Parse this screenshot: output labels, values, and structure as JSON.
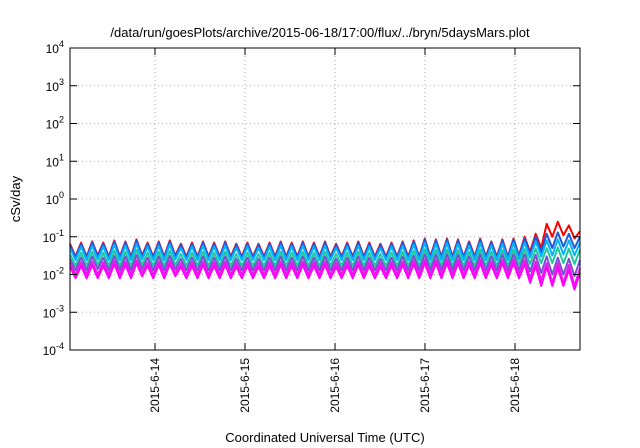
{
  "chart_data": {
    "type": "line",
    "title": "/data/run/goesPlots/archive/2015-06-18/17:00/flux/../bryn/5daysMars.plot",
    "xlabel": "Coordinated Universal Time (UTC)",
    "ylabel": "cSv/day",
    "yscale": "log",
    "ylim": [
      0.0001,
      10000
    ],
    "xlim": [
      "2015-06-13 04:00",
      "2015-06-18 17:00"
    ],
    "y_ticks": [
      {
        "value": 0.0001,
        "base": "10",
        "exp": "-4"
      },
      {
        "value": 0.001,
        "base": "10",
        "exp": "-3"
      },
      {
        "value": 0.01,
        "base": "10",
        "exp": "-2"
      },
      {
        "value": 0.1,
        "base": "10",
        "exp": "-1"
      },
      {
        "value": 1,
        "base": "10",
        "exp": "0"
      },
      {
        "value": 10,
        "base": "10",
        "exp": "1"
      },
      {
        "value": 100,
        "base": "10",
        "exp": "2"
      },
      {
        "value": 1000,
        "base": "10",
        "exp": "3"
      },
      {
        "value": 10000,
        "base": "10",
        "exp": "4"
      }
    ],
    "x_ticks": [
      "2015-6-14",
      "2015-6-15",
      "2015-6-16",
      "2015-6-17",
      "2015-6-18"
    ],
    "grid": true,
    "legend": "none",
    "series": [
      {
        "color": "#ff0000",
        "values": [
          0.065,
          0.03,
          0.07,
          0.03,
          0.075,
          0.032,
          0.07,
          0.03,
          0.08,
          0.03,
          0.075,
          0.03,
          0.085,
          0.032,
          0.07,
          0.03,
          0.075,
          0.03,
          0.08,
          0.032,
          0.065,
          0.03,
          0.07,
          0.03,
          0.075,
          0.03,
          0.07,
          0.03,
          0.075,
          0.03,
          0.065,
          0.03,
          0.07,
          0.03,
          0.065,
          0.03,
          0.07,
          0.03,
          0.075,
          0.03,
          0.07,
          0.03,
          0.075,
          0.03,
          0.07,
          0.03,
          0.075,
          0.03,
          0.065,
          0.03,
          0.07,
          0.03,
          0.075,
          0.03,
          0.07,
          0.03,
          0.065,
          0.03,
          0.07,
          0.03,
          0.075,
          0.03,
          0.08,
          0.03,
          0.09,
          0.03,
          0.085,
          0.03,
          0.09,
          0.03,
          0.085,
          0.03,
          0.075,
          0.03,
          0.09,
          0.03,
          0.075,
          0.03,
          0.085,
          0.03,
          0.09,
          0.032,
          0.1,
          0.04,
          0.12,
          0.05,
          0.22,
          0.1,
          0.25,
          0.11,
          0.2,
          0.09,
          0.14
        ]
      },
      {
        "color": "#1e5adc",
        "values": [
          0.06,
          0.028,
          0.065,
          0.028,
          0.07,
          0.03,
          0.065,
          0.028,
          0.075,
          0.028,
          0.07,
          0.028,
          0.08,
          0.03,
          0.065,
          0.028,
          0.07,
          0.028,
          0.075,
          0.03,
          0.06,
          0.028,
          0.065,
          0.028,
          0.07,
          0.028,
          0.065,
          0.028,
          0.07,
          0.028,
          0.06,
          0.028,
          0.065,
          0.028,
          0.06,
          0.028,
          0.065,
          0.028,
          0.07,
          0.028,
          0.065,
          0.028,
          0.07,
          0.028,
          0.065,
          0.028,
          0.07,
          0.028,
          0.06,
          0.028,
          0.065,
          0.028,
          0.07,
          0.028,
          0.065,
          0.028,
          0.06,
          0.028,
          0.065,
          0.028,
          0.07,
          0.028,
          0.075,
          0.028,
          0.085,
          0.028,
          0.08,
          0.028,
          0.085,
          0.028,
          0.08,
          0.028,
          0.07,
          0.028,
          0.085,
          0.028,
          0.07,
          0.028,
          0.08,
          0.028,
          0.085,
          0.03,
          0.09,
          0.035,
          0.1,
          0.04,
          0.12,
          0.05,
          0.13,
          0.055,
          0.12,
          0.05,
          0.1
        ]
      },
      {
        "color": "#00b4ff",
        "values": [
          0.05,
          0.024,
          0.055,
          0.024,
          0.058,
          0.025,
          0.055,
          0.024,
          0.062,
          0.024,
          0.058,
          0.024,
          0.065,
          0.025,
          0.055,
          0.024,
          0.058,
          0.024,
          0.062,
          0.025,
          0.05,
          0.024,
          0.055,
          0.024,
          0.058,
          0.024,
          0.055,
          0.024,
          0.058,
          0.024,
          0.05,
          0.024,
          0.055,
          0.024,
          0.05,
          0.024,
          0.055,
          0.024,
          0.058,
          0.024,
          0.055,
          0.024,
          0.058,
          0.024,
          0.055,
          0.024,
          0.058,
          0.024,
          0.05,
          0.024,
          0.055,
          0.024,
          0.058,
          0.024,
          0.055,
          0.024,
          0.05,
          0.024,
          0.055,
          0.024,
          0.058,
          0.024,
          0.062,
          0.024,
          0.068,
          0.024,
          0.065,
          0.024,
          0.068,
          0.024,
          0.065,
          0.024,
          0.058,
          0.024,
          0.068,
          0.024,
          0.058,
          0.024,
          0.065,
          0.024,
          0.068,
          0.025,
          0.07,
          0.028,
          0.075,
          0.03,
          0.08,
          0.032,
          0.085,
          0.034,
          0.08,
          0.032,
          0.07
        ]
      },
      {
        "color": "#20c8a0",
        "values": [
          0.035,
          0.017,
          0.038,
          0.017,
          0.04,
          0.018,
          0.038,
          0.017,
          0.042,
          0.017,
          0.04,
          0.017,
          0.045,
          0.018,
          0.038,
          0.017,
          0.04,
          0.017,
          0.042,
          0.018,
          0.035,
          0.017,
          0.038,
          0.017,
          0.04,
          0.017,
          0.038,
          0.017,
          0.04,
          0.017,
          0.035,
          0.017,
          0.038,
          0.017,
          0.035,
          0.017,
          0.038,
          0.017,
          0.04,
          0.017,
          0.038,
          0.017,
          0.04,
          0.017,
          0.038,
          0.017,
          0.04,
          0.017,
          0.035,
          0.017,
          0.038,
          0.017,
          0.04,
          0.017,
          0.038,
          0.017,
          0.035,
          0.017,
          0.038,
          0.017,
          0.04,
          0.017,
          0.042,
          0.017,
          0.046,
          0.017,
          0.044,
          0.017,
          0.046,
          0.017,
          0.044,
          0.017,
          0.04,
          0.017,
          0.046,
          0.017,
          0.04,
          0.017,
          0.044,
          0.017,
          0.046,
          0.018,
          0.047,
          0.019,
          0.048,
          0.02,
          0.05,
          0.02,
          0.052,
          0.02,
          0.048,
          0.019,
          0.045
        ]
      },
      {
        "color": "#7a4fd6",
        "values": [
          0.026,
          0.013,
          0.028,
          0.013,
          0.03,
          0.014,
          0.028,
          0.013,
          0.031,
          0.013,
          0.03,
          0.013,
          0.033,
          0.014,
          0.028,
          0.013,
          0.03,
          0.013,
          0.031,
          0.014,
          0.026,
          0.013,
          0.028,
          0.013,
          0.03,
          0.013,
          0.028,
          0.013,
          0.03,
          0.013,
          0.026,
          0.013,
          0.028,
          0.013,
          0.026,
          0.013,
          0.028,
          0.013,
          0.03,
          0.013,
          0.028,
          0.013,
          0.03,
          0.013,
          0.028,
          0.013,
          0.03,
          0.013,
          0.026,
          0.013,
          0.028,
          0.013,
          0.03,
          0.013,
          0.028,
          0.013,
          0.026,
          0.013,
          0.028,
          0.013,
          0.03,
          0.013,
          0.031,
          0.013,
          0.034,
          0.013,
          0.033,
          0.013,
          0.034,
          0.013,
          0.033,
          0.013,
          0.03,
          0.013,
          0.034,
          0.013,
          0.03,
          0.013,
          0.033,
          0.013,
          0.034,
          0.013,
          0.034,
          0.012,
          0.033,
          0.011,
          0.03,
          0.01,
          0.028,
          0.01,
          0.026,
          0.009,
          0.024
        ]
      },
      {
        "color": "#e61ee6",
        "values": [
          0.02,
          0.01,
          0.021,
          0.01,
          0.022,
          0.01,
          0.021,
          0.01,
          0.023,
          0.01,
          0.022,
          0.01,
          0.024,
          0.011,
          0.021,
          0.01,
          0.022,
          0.01,
          0.023,
          0.011,
          0.02,
          0.01,
          0.021,
          0.01,
          0.022,
          0.01,
          0.021,
          0.01,
          0.022,
          0.01,
          0.02,
          0.01,
          0.021,
          0.01,
          0.02,
          0.01,
          0.021,
          0.01,
          0.022,
          0.01,
          0.021,
          0.01,
          0.022,
          0.01,
          0.021,
          0.01,
          0.022,
          0.01,
          0.02,
          0.01,
          0.021,
          0.01,
          0.022,
          0.01,
          0.021,
          0.01,
          0.02,
          0.01,
          0.021,
          0.01,
          0.022,
          0.01,
          0.023,
          0.01,
          0.025,
          0.01,
          0.024,
          0.01,
          0.025,
          0.01,
          0.024,
          0.01,
          0.022,
          0.01,
          0.025,
          0.01,
          0.022,
          0.01,
          0.024,
          0.01,
          0.025,
          0.01,
          0.024,
          0.008,
          0.022,
          0.007,
          0.02,
          0.006,
          0.02,
          0.006,
          0.018,
          0.005,
          0.015
        ]
      },
      {
        "color": "#ff00ff",
        "values": [
          0.016,
          0.008,
          0.017,
          0.008,
          0.018,
          0.008,
          0.017,
          0.008,
          0.019,
          0.008,
          0.018,
          0.008,
          0.02,
          0.009,
          0.017,
          0.008,
          0.018,
          0.008,
          0.019,
          0.009,
          0.016,
          0.008,
          0.017,
          0.008,
          0.018,
          0.008,
          0.017,
          0.008,
          0.018,
          0.008,
          0.016,
          0.008,
          0.017,
          0.008,
          0.016,
          0.008,
          0.017,
          0.008,
          0.018,
          0.008,
          0.017,
          0.008,
          0.018,
          0.008,
          0.017,
          0.008,
          0.018,
          0.008,
          0.016,
          0.008,
          0.017,
          0.008,
          0.018,
          0.008,
          0.017,
          0.008,
          0.016,
          0.008,
          0.017,
          0.008,
          0.018,
          0.008,
          0.019,
          0.008,
          0.02,
          0.008,
          0.02,
          0.008,
          0.02,
          0.008,
          0.02,
          0.008,
          0.018,
          0.008,
          0.02,
          0.008,
          0.018,
          0.008,
          0.02,
          0.008,
          0.02,
          0.008,
          0.019,
          0.006,
          0.017,
          0.005,
          0.016,
          0.005,
          0.015,
          0.005,
          0.013,
          0.004,
          0.011
        ]
      }
    ]
  }
}
